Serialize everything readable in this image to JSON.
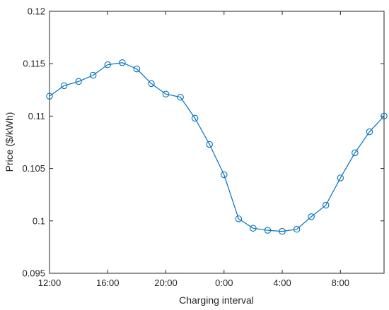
{
  "chart_data": {
    "type": "line",
    "xlabel": "Charging interval",
    "ylabel": "Price ($/kWh)",
    "xlim": [
      12,
      35
    ],
    "ylim": [
      0.095,
      0.12
    ],
    "x_ticks": [
      {
        "value": 12,
        "label": "12:00"
      },
      {
        "value": 16,
        "label": "16:00"
      },
      {
        "value": 20,
        "label": "20:00"
      },
      {
        "value": 24,
        "label": "0:00"
      },
      {
        "value": 28,
        "label": "4:00"
      },
      {
        "value": 32,
        "label": "8:00"
      }
    ],
    "y_ticks": [
      {
        "value": 0.095,
        "label": "0.095"
      },
      {
        "value": 0.1,
        "label": "0.1"
      },
      {
        "value": 0.105,
        "label": "0.105"
      },
      {
        "value": 0.11,
        "label": "0.11"
      },
      {
        "value": 0.115,
        "label": "0.115"
      },
      {
        "value": 0.12,
        "label": "0.12"
      }
    ],
    "grid": false,
    "series": [
      {
        "color": "#0072bd",
        "marker": "circle",
        "x": [
          "12:00",
          "13:00",
          "14:00",
          "15:00",
          "16:00",
          "17:00",
          "18:00",
          "19:00",
          "20:00",
          "21:00",
          "22:00",
          "23:00",
          "0:00",
          "1:00",
          "2:00",
          "3:00",
          "4:00",
          "5:00",
          "6:00",
          "7:00",
          "8:00",
          "9:00",
          "10:00",
          "11:00"
        ],
        "values": [
          0.1119,
          0.1129,
          0.1133,
          0.1139,
          0.1149,
          0.1151,
          0.1145,
          0.1131,
          0.1121,
          0.1118,
          0.1098,
          0.1073,
          0.1044,
          0.1002,
          0.0993,
          0.0991,
          0.099,
          0.0992,
          0.1004,
          0.1015,
          0.1041,
          0.1065,
          0.1085,
          0.11
        ]
      }
    ]
  }
}
